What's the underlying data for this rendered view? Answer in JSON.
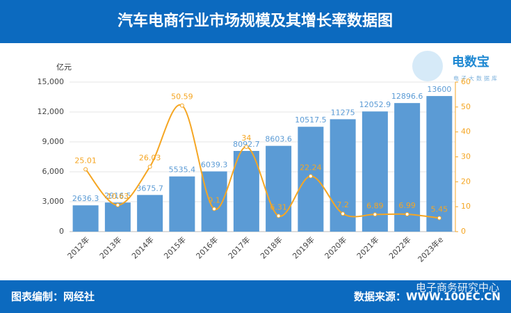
{
  "chart_data": {
    "type": "bar",
    "title": "汽车电商行业市场规模及其增长率数据图",
    "y_label": "亿元",
    "categories": [
      "2012年",
      "2013年",
      "2014年",
      "2015年",
      "2016年",
      "2017年",
      "2018年",
      "2019年",
      "2020年",
      "2021年",
      "2022年",
      "2023年e"
    ],
    "series": [
      {
        "type": "bar",
        "color": "#5b9bd5",
        "values": [
          2636.3,
          2916.5,
          3675.7,
          5535.4,
          6039.3,
          8092.7,
          8603.6,
          10517.5,
          11275,
          12052.9,
          12896.6,
          13600
        ]
      },
      {
        "type": "line",
        "axis": "y2",
        "color": "#f5a623",
        "values": [
          25.01,
          10.63,
          26.03,
          50.59,
          9.1,
          34,
          6.31,
          22.24,
          7.2,
          6.89,
          6.99,
          5.45
        ]
      }
    ],
    "ylim": [
      0,
      15000
    ],
    "yticks": [
      0,
      {
        "value": 3000,
        "label": "3,000"
      },
      {
        "value": 6000,
        "label": "6,000"
      },
      {
        "value": 9000,
        "label": "9,000"
      },
      {
        "value": 12000,
        "label": "12,000"
      },
      {
        "value": 15000,
        "label": "15,000"
      }
    ],
    "y2lim": [
      0,
      60
    ],
    "y2ticks": [
      0,
      10,
      20,
      30,
      40,
      50,
      60
    ],
    "grid": true
  },
  "logo": {
    "name": "电数宝",
    "subtitle": "电子大数据库"
  },
  "footer": {
    "left": "图表编制：网经社",
    "right": "数据来源：WWW.100EC.CN"
  },
  "watermark": "电子商务研究中心"
}
